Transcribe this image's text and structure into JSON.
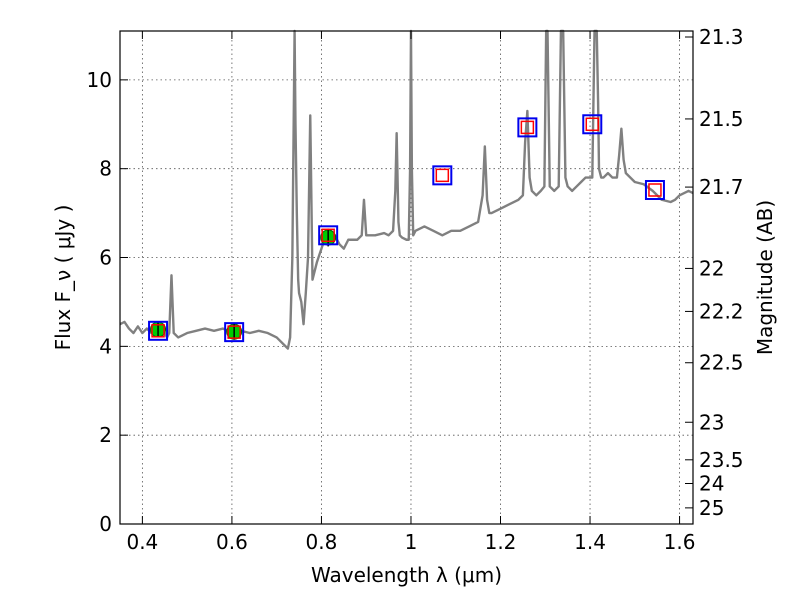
{
  "chart_data": {
    "type": "line",
    "xlabel": "Wavelength  λ (μm)",
    "ylabel": "Flux  F_ν  ( μJy )",
    "ylabel_right": "Magnitude (AB)",
    "xlim": [
      0.35,
      1.63
    ],
    "ylim": [
      0,
      11.1
    ],
    "grid": true,
    "xticks": [
      {
        "v": 0.4,
        "label": "0.4"
      },
      {
        "v": 0.6,
        "label": "0.6"
      },
      {
        "v": 0.8,
        "label": "0.8"
      },
      {
        "v": 1.0,
        "label": "1"
      },
      {
        "v": 1.2,
        "label": "1.2"
      },
      {
        "v": 1.4,
        "label": "1.4"
      },
      {
        "v": 1.6,
        "label": "1.6"
      }
    ],
    "yticks": [
      {
        "v": 0,
        "label": "0"
      },
      {
        "v": 2,
        "label": "2"
      },
      {
        "v": 4,
        "label": "4"
      },
      {
        "v": 6,
        "label": "6"
      },
      {
        "v": 8,
        "label": "8"
      },
      {
        "v": 10,
        "label": "10"
      }
    ],
    "right_ticks": [
      {
        "mag": 21.3,
        "label": "21.3"
      },
      {
        "mag": 21.5,
        "label": "21.5"
      },
      {
        "mag": 21.7,
        "label": "21.7"
      },
      {
        "mag": 22,
        "label": "22"
      },
      {
        "mag": 22.2,
        "label": "22.2"
      },
      {
        "mag": 22.5,
        "label": "22.5"
      },
      {
        "mag": 23,
        "label": "23"
      },
      {
        "mag": 23.5,
        "label": "23.5"
      },
      {
        "mag": 24,
        "label": "24"
      },
      {
        "mag": 25,
        "label": "25"
      }
    ],
    "series": [
      {
        "kind": "spectrum",
        "color": "#808080",
        "x": [
          0.35,
          0.36,
          0.37,
          0.38,
          0.39,
          0.4,
          0.41,
          0.42,
          0.43,
          0.44,
          0.45,
          0.455,
          0.46,
          0.465,
          0.47,
          0.48,
          0.5,
          0.52,
          0.54,
          0.56,
          0.58,
          0.6,
          0.62,
          0.64,
          0.66,
          0.68,
          0.7,
          0.72,
          0.725,
          0.73,
          0.735,
          0.74,
          0.742,
          0.745,
          0.748,
          0.75,
          0.755,
          0.76,
          0.765,
          0.77,
          0.775,
          0.78,
          0.785,
          0.79,
          0.8,
          0.81,
          0.815,
          0.818,
          0.822,
          0.825,
          0.83,
          0.835,
          0.84,
          0.85,
          0.86,
          0.87,
          0.88,
          0.89,
          0.895,
          0.9,
          0.92,
          0.94,
          0.95,
          0.96,
          0.965,
          0.968,
          0.972,
          0.975,
          0.98,
          0.99,
          0.995,
          0.998,
          1.0,
          1.002,
          1.005,
          1.01,
          1.03,
          1.05,
          1.07,
          1.09,
          1.11,
          1.13,
          1.15,
          1.16,
          1.165,
          1.17,
          1.175,
          1.18,
          1.2,
          1.22,
          1.24,
          1.25,
          1.255,
          1.26,
          1.265,
          1.27,
          1.28,
          1.29,
          1.298,
          1.302,
          1.305,
          1.31,
          1.32,
          1.33,
          1.335,
          1.34,
          1.345,
          1.35,
          1.36,
          1.37,
          1.38,
          1.39,
          1.4,
          1.405,
          1.41,
          1.415,
          1.418,
          1.42,
          1.425,
          1.43,
          1.44,
          1.45,
          1.46,
          1.465,
          1.47,
          1.475,
          1.48,
          1.5,
          1.52,
          1.54,
          1.56,
          1.58,
          1.59,
          1.6,
          1.62,
          1.63
        ],
        "y": [
          4.5,
          4.55,
          4.4,
          4.3,
          4.45,
          4.3,
          4.4,
          4.3,
          4.4,
          4.35,
          4.3,
          4.2,
          4.3,
          5.6,
          4.3,
          4.2,
          4.3,
          4.35,
          4.4,
          4.35,
          4.4,
          4.3,
          4.35,
          4.3,
          4.35,
          4.3,
          4.2,
          4.0,
          3.95,
          4.2,
          6.0,
          11.2,
          9.0,
          7.0,
          5.5,
          5.2,
          5.0,
          4.5,
          5.2,
          6.0,
          9.2,
          5.5,
          5.7,
          5.9,
          6.2,
          6.5,
          6.4,
          6.3,
          6.6,
          6.4,
          6.5,
          6.4,
          6.3,
          6.2,
          6.4,
          6.4,
          6.4,
          6.5,
          7.3,
          6.5,
          6.5,
          6.55,
          6.5,
          6.6,
          7.5,
          8.8,
          6.8,
          6.5,
          6.45,
          6.4,
          6.4,
          8.0,
          11.2,
          8.0,
          6.5,
          6.6,
          6.7,
          6.6,
          6.5,
          6.6,
          6.6,
          6.7,
          6.8,
          7.4,
          8.5,
          7.3,
          7.0,
          7.0,
          7.1,
          7.2,
          7.3,
          7.4,
          8.6,
          9.3,
          7.8,
          7.5,
          7.4,
          7.5,
          7.6,
          11.2,
          11.2,
          7.6,
          7.5,
          7.6,
          11.2,
          11.2,
          7.8,
          7.6,
          7.5,
          7.6,
          7.7,
          7.8,
          7.8,
          7.8,
          11.2,
          11.2,
          9.5,
          8.0,
          7.8,
          7.8,
          7.9,
          7.8,
          7.8,
          8.3,
          8.9,
          8.2,
          7.9,
          7.7,
          7.65,
          7.5,
          7.3,
          7.25,
          7.3,
          7.4,
          7.5,
          7.45
        ]
      },
      {
        "kind": "measured",
        "name": "",
        "color": "#00cc00",
        "x": [
          0.435,
          0.605,
          0.815
        ],
        "y": [
          4.38,
          4.33,
          6.45
        ],
        "err": [
          0.18,
          0.18,
          0.2
        ]
      },
      {
        "kind": "model_points",
        "name": "",
        "color": "#ff0000",
        "x": [
          0.435,
          0.605,
          0.815,
          1.07,
          1.26,
          1.405,
          1.545
        ],
        "y": [
          4.35,
          4.32,
          6.5,
          7.85,
          8.93,
          9.0,
          7.52
        ]
      }
    ]
  }
}
